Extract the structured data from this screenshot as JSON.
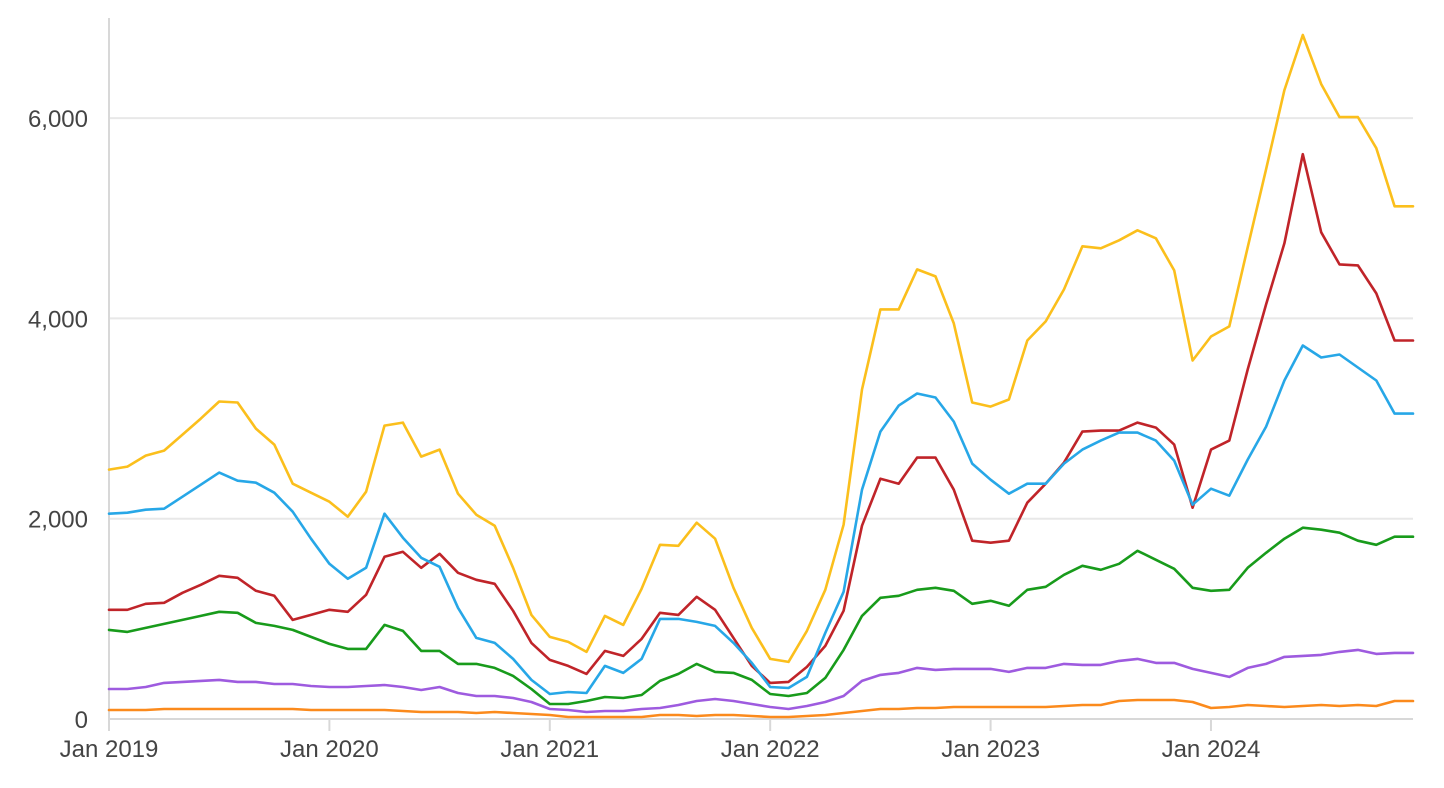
{
  "chart_data": {
    "type": "line",
    "title": "",
    "xlabel": "",
    "ylabel": "",
    "x_start": "2019-01",
    "x_end": "2024-12",
    "ylim": [
      0,
      7000
    ],
    "y_ticks": [
      0,
      2000,
      4000,
      6000
    ],
    "y_tick_labels": [
      "0",
      "2,000",
      "4,000",
      "6,000"
    ],
    "x_ticks": [
      "2019-01",
      "2020-01",
      "2021-01",
      "2022-01",
      "2023-01",
      "2024-01"
    ],
    "x_tick_labels": [
      "Jan 2019",
      "Jan 2020",
      "Jan 2021",
      "Jan 2022",
      "Jan 2023",
      "Jan 2024"
    ],
    "grid": true,
    "legend": "none",
    "series": [
      {
        "color": "#fbbf1c",
        "values": [
          2490,
          2520,
          2630,
          2680,
          2840,
          3000,
          3170,
          3160,
          2900,
          2740,
          2350,
          2260,
          2170,
          2020,
          2270,
          2930,
          2960,
          2620,
          2690,
          2250,
          2040,
          1930,
          1510,
          1040,
          820,
          770,
          670,
          1030,
          940,
          1300,
          1740,
          1730,
          1960,
          1800,
          1310,
          910,
          600,
          570,
          880,
          1290,
          1940,
          3290,
          4090,
          4090,
          4490,
          4420,
          3950,
          3160,
          3120,
          3190,
          3780,
          3970,
          4290,
          4720,
          4700,
          4780,
          4880,
          4800,
          4480,
          3580,
          3820,
          3920,
          4710,
          5490,
          6280,
          6830,
          6340,
          6010,
          6010,
          5700,
          5120,
          5120
        ]
      },
      {
        "color": "#c02429",
        "values": [
          1090,
          1090,
          1150,
          1160,
          1260,
          1340,
          1430,
          1410,
          1280,
          1230,
          990,
          1040,
          1090,
          1070,
          1240,
          1620,
          1670,
          1510,
          1650,
          1460,
          1390,
          1350,
          1080,
          760,
          590,
          530,
          450,
          680,
          630,
          800,
          1060,
          1040,
          1220,
          1090,
          810,
          530,
          360,
          370,
          520,
          730,
          1080,
          1930,
          2400,
          2350,
          2610,
          2610,
          2290,
          1780,
          1760,
          1780,
          2160,
          2350,
          2560,
          2870,
          2880,
          2880,
          2960,
          2910,
          2740,
          2110,
          2690,
          2780,
          3490,
          4140,
          4750,
          5640,
          4860,
          4540,
          4530,
          4250,
          3780,
          3780
        ]
      },
      {
        "color": "#27a7e7",
        "values": [
          2050,
          2060,
          2090,
          2100,
          2220,
          2340,
          2460,
          2380,
          2360,
          2260,
          2070,
          1800,
          1550,
          1400,
          1510,
          2050,
          1810,
          1610,
          1520,
          1110,
          810,
          760,
          600,
          390,
          250,
          270,
          260,
          530,
          460,
          600,
          1000,
          1000,
          970,
          930,
          760,
          560,
          320,
          310,
          420,
          860,
          1270,
          2290,
          2870,
          3130,
          3250,
          3210,
          2970,
          2550,
          2390,
          2250,
          2350,
          2350,
          2550,
          2690,
          2780,
          2860,
          2860,
          2780,
          2580,
          2140,
          2300,
          2230,
          2590,
          2920,
          3380,
          3730,
          3610,
          3640,
          3510,
          3380,
          3050,
          3050
        ]
      },
      {
        "color": "#189b1b",
        "values": [
          890,
          870,
          910,
          950,
          990,
          1030,
          1070,
          1060,
          960,
          930,
          890,
          820,
          750,
          700,
          700,
          940,
          880,
          680,
          680,
          550,
          550,
          510,
          430,
          300,
          150,
          150,
          180,
          220,
          210,
          240,
          380,
          450,
          550,
          470,
          460,
          390,
          250,
          230,
          260,
          410,
          690,
          1030,
          1210,
          1230,
          1290,
          1310,
          1280,
          1150,
          1180,
          1130,
          1290,
          1320,
          1440,
          1530,
          1490,
          1550,
          1680,
          1590,
          1500,
          1310,
          1280,
          1290,
          1510,
          1660,
          1800,
          1910,
          1890,
          1860,
          1780,
          1740,
          1820,
          1820
        ]
      },
      {
        "color": "#9e5bdf",
        "values": [
          300,
          300,
          320,
          360,
          370,
          380,
          390,
          370,
          370,
          350,
          350,
          330,
          320,
          320,
          330,
          340,
          320,
          290,
          320,
          260,
          230,
          230,
          210,
          170,
          100,
          90,
          70,
          80,
          80,
          100,
          110,
          140,
          180,
          200,
          180,
          150,
          120,
          100,
          130,
          170,
          230,
          380,
          440,
          460,
          510,
          490,
          500,
          500,
          500,
          470,
          510,
          510,
          550,
          540,
          540,
          580,
          600,
          560,
          560,
          500,
          460,
          420,
          510,
          550,
          620,
          630,
          640,
          670,
          690,
          650,
          660,
          660
        ]
      },
      {
        "color": "#fb8a1c",
        "values": [
          90,
          90,
          90,
          100,
          100,
          100,
          100,
          100,
          100,
          100,
          100,
          90,
          90,
          90,
          90,
          90,
          80,
          70,
          70,
          70,
          60,
          70,
          60,
          50,
          40,
          20,
          20,
          20,
          20,
          20,
          40,
          40,
          30,
          40,
          40,
          30,
          20,
          20,
          30,
          40,
          60,
          80,
          100,
          100,
          110,
          110,
          120,
          120,
          120,
          120,
          120,
          120,
          130,
          140,
          140,
          180,
          190,
          190,
          190,
          170,
          110,
          120,
          140,
          130,
          120,
          130,
          140,
          130,
          140,
          130,
          180,
          180
        ]
      }
    ]
  }
}
